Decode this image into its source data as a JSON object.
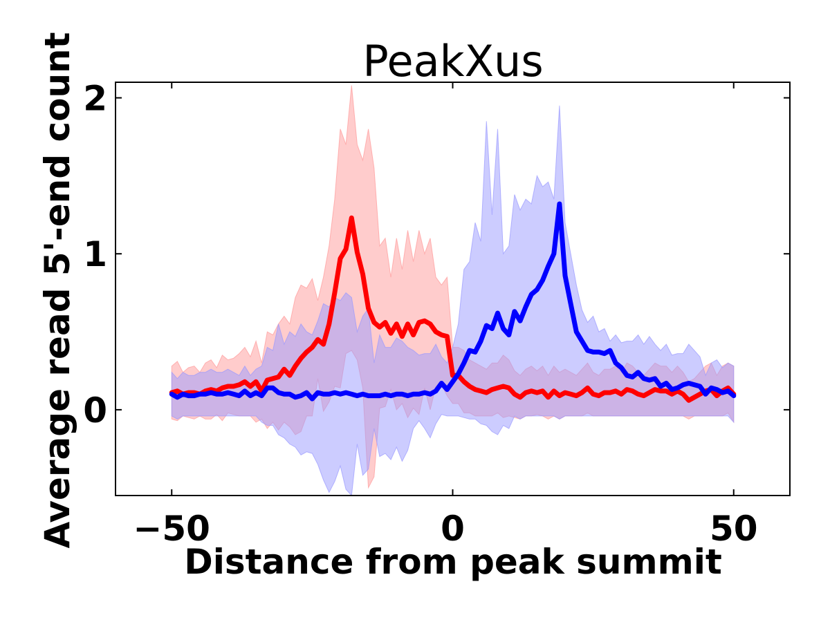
{
  "chart_data": {
    "type": "line",
    "title": "PeakXus",
    "xlabel": "Distance from peak summit",
    "ylabel": "Average read 5'-end count",
    "xlim": [
      -60,
      60
    ],
    "ylim": [
      -0.55,
      2.1
    ],
    "xticks": [
      -50,
      0,
      50
    ],
    "xtick_labels": [
      "−50",
      "0",
      "50"
    ],
    "yticks": [
      0,
      1,
      2
    ],
    "ytick_labels": [
      "0",
      "1",
      "2"
    ],
    "grid": false,
    "legend": "none",
    "x": [
      -50,
      -49,
      -48,
      -47,
      -46,
      -45,
      -44,
      -43,
      -42,
      -41,
      -40,
      -39,
      -38,
      -37,
      -36,
      -35,
      -34,
      -33,
      -32,
      -31,
      -30,
      -29,
      -28,
      -27,
      -26,
      -25,
      -24,
      -23,
      -22,
      -21,
      -20,
      -19,
      -18,
      -17,
      -16,
      -15,
      -14,
      -13,
      -12,
      -11,
      -10,
      -9,
      -8,
      -7,
      -6,
      -5,
      -4,
      -3,
      -2,
      -1,
      0,
      1,
      2,
      3,
      4,
      5,
      6,
      7,
      8,
      9,
      10,
      11,
      12,
      13,
      14,
      15,
      16,
      17,
      18,
      19,
      20,
      21,
      22,
      23,
      24,
      25,
      26,
      27,
      28,
      29,
      30,
      31,
      32,
      33,
      34,
      35,
      36,
      37,
      38,
      39,
      40,
      41,
      42,
      43,
      44,
      45,
      46,
      47,
      48,
      49,
      50
    ],
    "series": [
      {
        "color": "#ff0000",
        "band_color": "#ff9999",
        "values": [
          0.11,
          0.12,
          0.1,
          0.11,
          0.11,
          0.1,
          0.12,
          0.13,
          0.12,
          0.14,
          0.15,
          0.15,
          0.16,
          0.18,
          0.15,
          0.18,
          0.12,
          0.19,
          0.2,
          0.21,
          0.26,
          0.22,
          0.28,
          0.33,
          0.37,
          0.4,
          0.45,
          0.42,
          0.55,
          0.75,
          0.97,
          1.03,
          1.23,
          1.01,
          0.87,
          0.65,
          0.56,
          0.53,
          0.56,
          0.49,
          0.55,
          0.47,
          0.55,
          0.48,
          0.56,
          0.57,
          0.55,
          0.5,
          0.48,
          0.47,
          0.22,
          0.22,
          0.18,
          0.15,
          0.13,
          0.12,
          0.11,
          0.13,
          0.14,
          0.15,
          0.14,
          0.1,
          0.08,
          0.11,
          0.12,
          0.11,
          0.12,
          0.08,
          0.12,
          0.09,
          0.11,
          0.1,
          0.09,
          0.11,
          0.14,
          0.1,
          0.09,
          0.11,
          0.11,
          0.12,
          0.1,
          0.13,
          0.12,
          0.1,
          0.09,
          0.11,
          0.13,
          0.12,
          0.12,
          0.1,
          0.12,
          0.1,
          0.06,
          0.08,
          0.1,
          0.12,
          0.13,
          0.09,
          0.12,
          0.14,
          0.1
        ],
        "upper": [
          0.28,
          0.31,
          0.24,
          0.27,
          0.28,
          0.24,
          0.3,
          0.32,
          0.27,
          0.35,
          0.32,
          0.33,
          0.36,
          0.4,
          0.34,
          0.44,
          0.3,
          0.5,
          0.48,
          0.55,
          0.6,
          0.55,
          0.72,
          0.8,
          0.78,
          0.84,
          0.7,
          0.85,
          1.05,
          1.35,
          1.8,
          1.7,
          2.08,
          1.7,
          1.6,
          1.8,
          1.55,
          1.05,
          1.1,
          0.85,
          1.1,
          0.9,
          1.15,
          0.95,
          1.15,
          1.0,
          1.1,
          0.85,
          0.8,
          0.85,
          0.4,
          0.4,
          0.38,
          0.32,
          0.3,
          0.28,
          0.26,
          0.3,
          0.3,
          0.35,
          0.32,
          0.25,
          0.22,
          0.26,
          0.28,
          0.25,
          0.28,
          0.22,
          0.28,
          0.24,
          0.26,
          0.24,
          0.22,
          0.26,
          0.3,
          0.24,
          0.22,
          0.26,
          0.26,
          0.28,
          0.24,
          0.3,
          0.28,
          0.24,
          0.22,
          0.26,
          0.3,
          0.28,
          0.28,
          0.24,
          0.28,
          0.24,
          0.18,
          0.2,
          0.24,
          0.28,
          0.3,
          0.22,
          0.28,
          0.3,
          0.28
        ],
        "lower": [
          -0.06,
          -0.07,
          -0.04,
          -0.05,
          -0.06,
          -0.04,
          -0.06,
          -0.06,
          -0.03,
          -0.07,
          -0.02,
          -0.03,
          -0.04,
          -0.04,
          -0.04,
          -0.08,
          -0.06,
          -0.12,
          -0.08,
          -0.13,
          -0.08,
          -0.11,
          -0.16,
          -0.14,
          -0.04,
          -0.04,
          0.2,
          -0.01,
          0.05,
          0.15,
          0.14,
          0.36,
          0.38,
          0.32,
          0.14,
          -0.5,
          -0.43,
          0.01,
          0.02,
          0.13,
          0.0,
          0.04,
          -0.05,
          0.01,
          -0.03,
          0.14,
          0.0,
          0.15,
          0.16,
          0.09,
          0.04,
          0.04,
          -0.02,
          -0.02,
          -0.04,
          -0.04,
          -0.04,
          -0.04,
          -0.02,
          -0.05,
          -0.04,
          -0.05,
          -0.06,
          -0.04,
          -0.04,
          -0.03,
          -0.04,
          -0.06,
          -0.04,
          -0.06,
          -0.04,
          -0.04,
          -0.04,
          -0.04,
          -0.02,
          -0.04,
          -0.04,
          -0.04,
          -0.04,
          -0.04,
          -0.04,
          -0.04,
          -0.04,
          -0.04,
          -0.04,
          -0.04,
          -0.04,
          -0.04,
          -0.04,
          -0.04,
          -0.04,
          -0.04,
          -0.06,
          -0.04,
          -0.04,
          -0.04,
          -0.04,
          -0.04,
          -0.04,
          -0.02,
          -0.08
        ]
      },
      {
        "color": "#0000ff",
        "band_color": "#9999ff",
        "values": [
          0.1,
          0.08,
          0.1,
          0.09,
          0.09,
          0.1,
          0.1,
          0.11,
          0.1,
          0.1,
          0.11,
          0.1,
          0.09,
          0.12,
          0.09,
          0.11,
          0.09,
          0.14,
          0.14,
          0.11,
          0.1,
          0.1,
          0.08,
          0.09,
          0.11,
          0.07,
          0.11,
          0.1,
          0.1,
          0.11,
          0.1,
          0.11,
          0.1,
          0.09,
          0.1,
          0.09,
          0.09,
          0.09,
          0.1,
          0.09,
          0.1,
          0.1,
          0.09,
          0.1,
          0.1,
          0.11,
          0.1,
          0.12,
          0.17,
          0.13,
          0.18,
          0.23,
          0.3,
          0.38,
          0.37,
          0.44,
          0.54,
          0.52,
          0.62,
          0.52,
          0.48,
          0.63,
          0.57,
          0.66,
          0.74,
          0.77,
          0.83,
          0.92,
          1.0,
          1.32,
          0.86,
          0.68,
          0.5,
          0.44,
          0.38,
          0.37,
          0.37,
          0.36,
          0.38,
          0.3,
          0.27,
          0.22,
          0.21,
          0.24,
          0.2,
          0.19,
          0.2,
          0.15,
          0.17,
          0.13,
          0.14,
          0.16,
          0.17,
          0.16,
          0.15,
          0.1,
          0.14,
          0.13,
          0.11,
          0.12,
          0.09
        ],
        "upper": [
          0.24,
          0.2,
          0.24,
          0.22,
          0.22,
          0.24,
          0.24,
          0.26,
          0.24,
          0.24,
          0.26,
          0.24,
          0.22,
          0.28,
          0.22,
          0.26,
          0.28,
          0.4,
          0.38,
          0.55,
          0.42,
          0.5,
          0.47,
          0.55,
          0.5,
          0.48,
          0.57,
          0.68,
          0.66,
          0.72,
          0.7,
          0.75,
          0.72,
          0.5,
          0.6,
          0.65,
          0.3,
          0.48,
          0.4,
          0.4,
          0.46,
          0.44,
          0.4,
          0.38,
          0.35,
          0.36,
          0.36,
          0.42,
          0.34,
          0.3,
          0.4,
          0.55,
          0.9,
          0.95,
          1.2,
          1.08,
          1.85,
          1.25,
          1.8,
          1.0,
          1.05,
          1.38,
          1.28,
          1.35,
          1.32,
          1.5,
          1.43,
          1.46,
          1.35,
          1.95,
          1.2,
          1.0,
          0.8,
          0.64,
          0.56,
          0.6,
          0.5,
          0.52,
          0.44,
          0.48,
          0.43,
          0.44,
          0.44,
          0.48,
          0.42,
          0.47,
          0.42,
          0.38,
          0.42,
          0.35,
          0.36,
          0.36,
          0.42,
          0.38,
          0.34,
          0.22,
          0.3,
          0.32,
          0.27,
          0.3,
          0.28
        ],
        "lower": [
          -0.04,
          -0.06,
          -0.04,
          -0.04,
          -0.04,
          -0.04,
          -0.04,
          -0.04,
          -0.04,
          -0.04,
          -0.04,
          -0.04,
          -0.04,
          -0.04,
          -0.04,
          -0.04,
          -0.08,
          -0.1,
          -0.1,
          -0.16,
          -0.18,
          -0.22,
          -0.24,
          -0.29,
          -0.27,
          -0.28,
          -0.35,
          -0.45,
          -0.53,
          -0.46,
          -0.36,
          -0.51,
          -0.55,
          -0.22,
          -0.42,
          -0.38,
          -0.12,
          -0.3,
          -0.28,
          -0.32,
          -0.24,
          -0.33,
          -0.26,
          -0.12,
          -0.07,
          -0.12,
          -0.18,
          -0.09,
          -0.03,
          -0.04,
          -0.04,
          -0.04,
          -0.05,
          -0.06,
          -0.06,
          -0.09,
          -0.1,
          -0.14,
          -0.16,
          -0.1,
          -0.12,
          -0.04,
          -0.06,
          -0.04,
          -0.04,
          -0.04,
          -0.04,
          -0.04,
          -0.04,
          -0.06,
          -0.04,
          -0.04,
          -0.04,
          -0.04,
          -0.04,
          -0.04,
          -0.04,
          -0.04,
          -0.04,
          -0.04,
          -0.04,
          -0.04,
          -0.04,
          -0.04,
          -0.04,
          -0.04,
          -0.04,
          -0.04,
          -0.04,
          -0.04,
          -0.04,
          -0.04,
          -0.04,
          -0.04,
          -0.04,
          -0.04,
          -0.04,
          -0.04,
          -0.04,
          -0.04,
          -0.08
        ]
      }
    ]
  }
}
